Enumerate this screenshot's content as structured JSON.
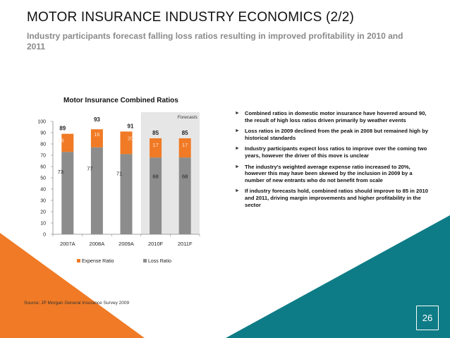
{
  "slide": {
    "title": "MOTOR INSURANCE INDUSTRY ECONOMICS (2/2)",
    "subtitle": "Industry participants forecast falling loss ratios resulting in improved profitability in 2010 and 2011",
    "source": "Source: JP Morgan General Insurance Survey 2009",
    "page_number": "26",
    "bullets": [
      "Combined ratios in domestic motor insurance have hovered around 90, the result of high loss ratios driven primarily by weather events",
      "Loss ratios in 2009 declined from the peak in 2008 but remained high by historical standards",
      "Industry participants expect loss ratios to improve over the coming two years, however the driver of this move is unclear",
      "The industry's weighted average expense ratio increased to 20%, however this may have been skewed by the inclusion in 2009 by a number of new entrants who do not benefit from scale",
      "If industry forecasts hold, combined ratios should improve to 85 in 2010 and 2011, driving margin improvements and higher profitability in the sector"
    ],
    "colors": {
      "orange": "#f07a25",
      "teal": "#0e7c86",
      "gray_bar": "#8c8c8c",
      "forecast_bg": "#e6e6e6"
    }
  },
  "chart_data": {
    "type": "bar",
    "stacked": true,
    "title": "Motor Insurance Combined Ratios",
    "categories": [
      "2007A",
      "2008A",
      "2009A",
      "2010F",
      "2011F"
    ],
    "series": [
      {
        "name": "Loss Ratio",
        "values": [
          73,
          77,
          71,
          68,
          68
        ],
        "color": "#8c8c8c"
      },
      {
        "name": "Expense Ratio",
        "values": [
          16,
          16,
          20,
          17,
          17
        ],
        "color": "#f07a25"
      }
    ],
    "totals": [
      89,
      93,
      91,
      85,
      85
    ],
    "ylim": [
      0,
      100
    ],
    "yticks": [
      0,
      10,
      20,
      30,
      40,
      50,
      60,
      70,
      80,
      90,
      100
    ],
    "forecast_label": "Forecasts",
    "forecast_from_index": 3,
    "legend_position": "bottom"
  }
}
